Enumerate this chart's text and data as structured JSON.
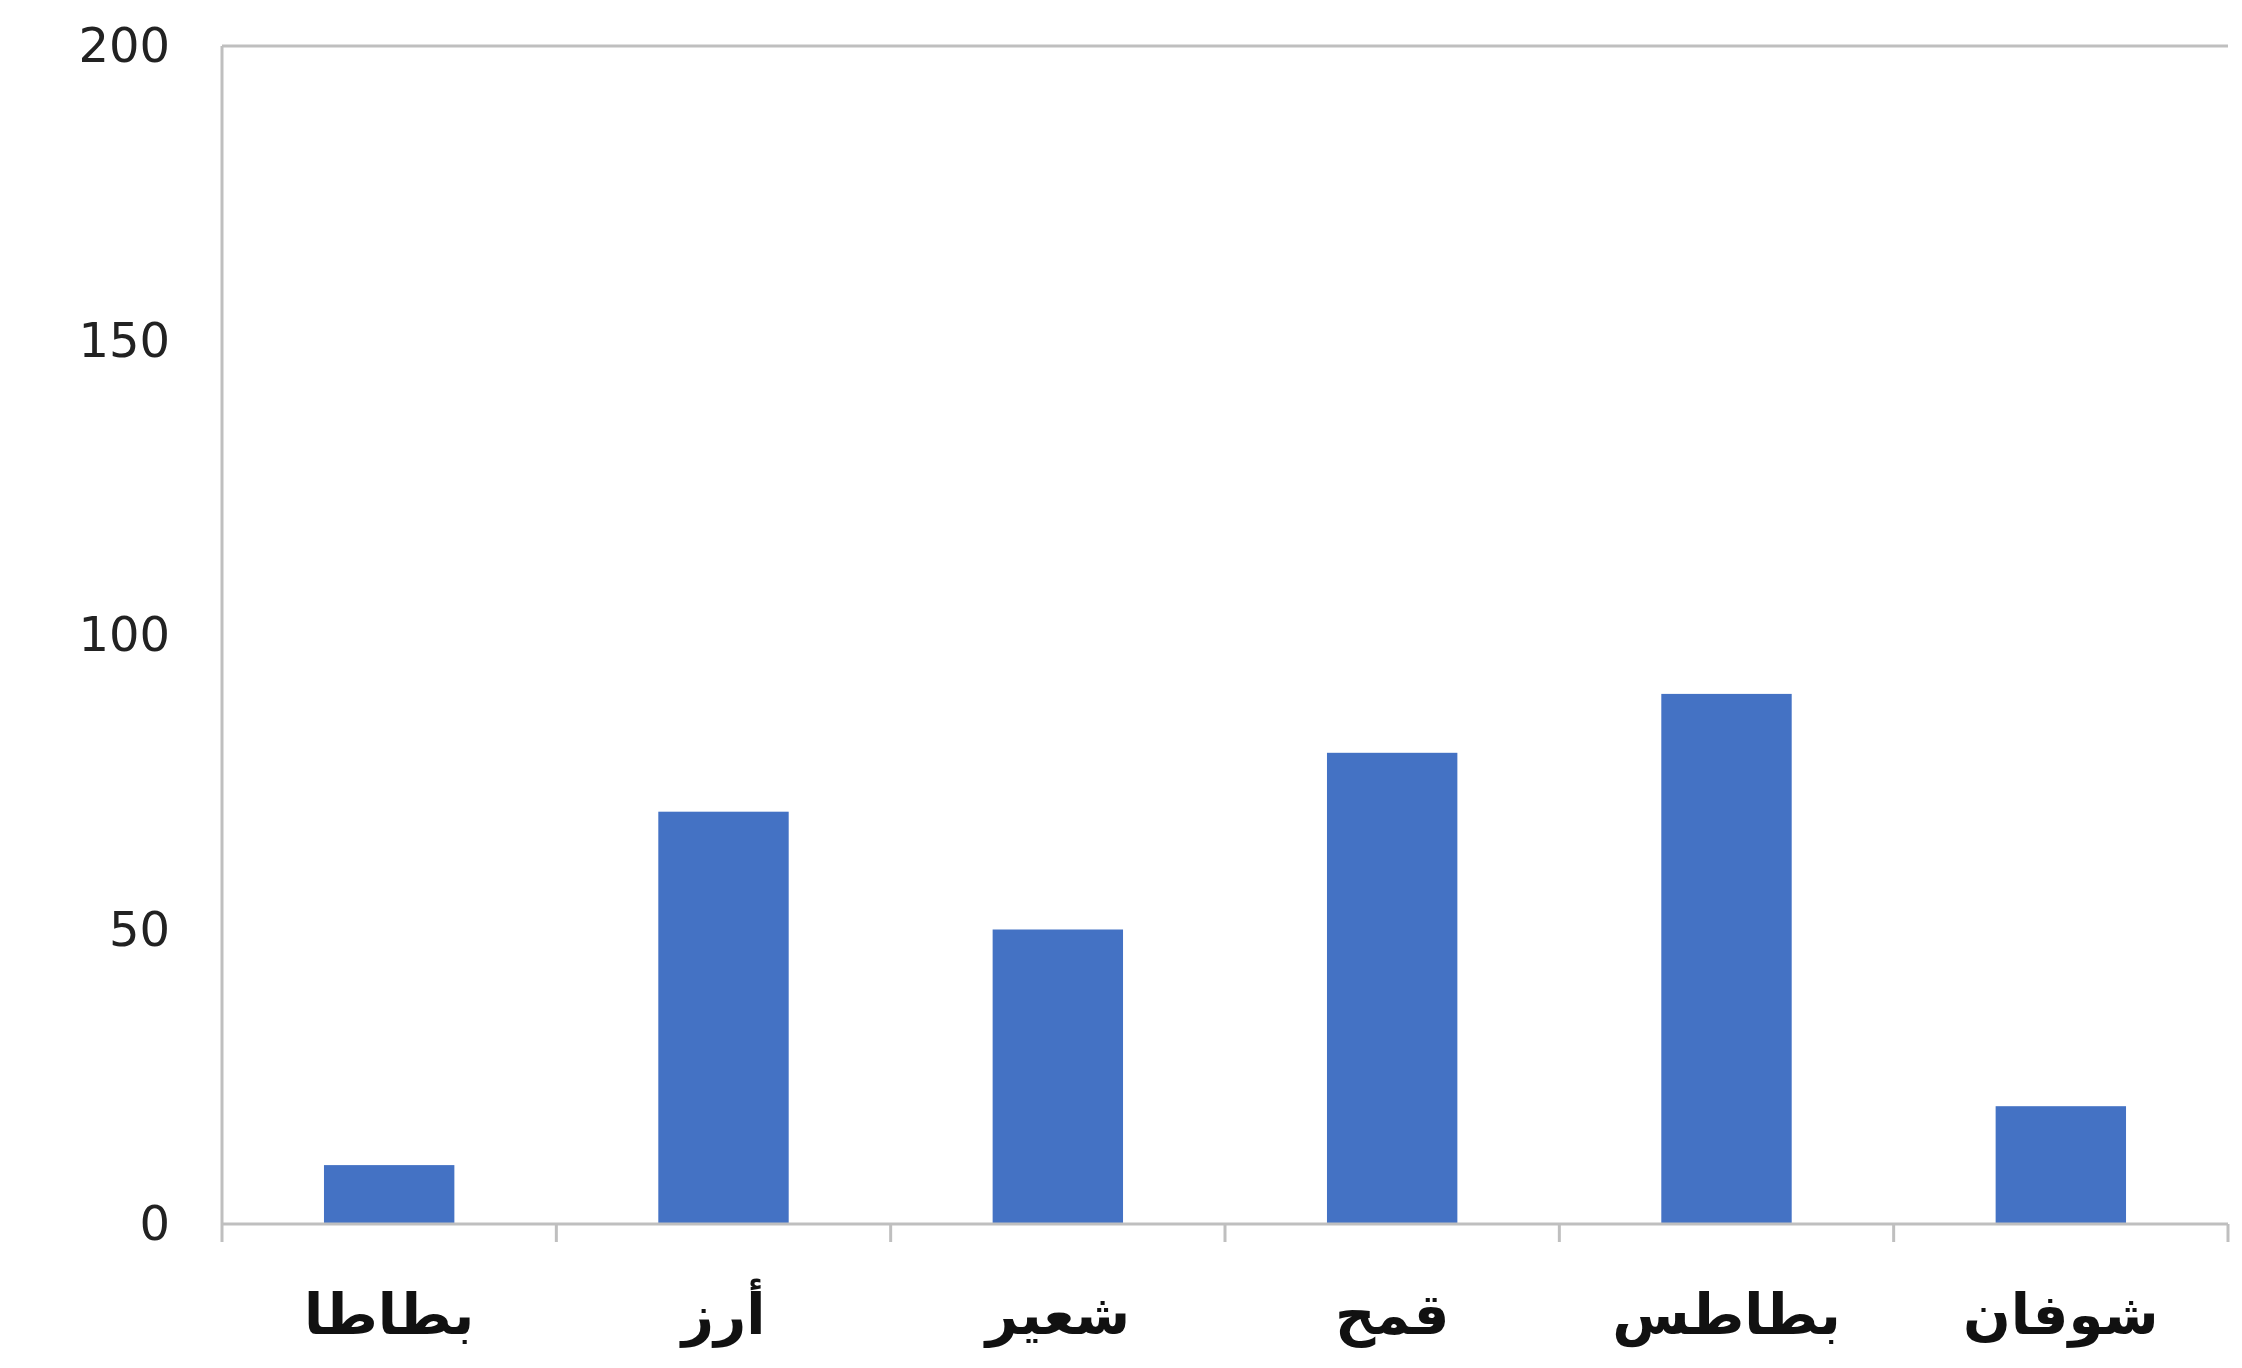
{
  "chart_data": {
    "type": "bar",
    "categories": [
      "بطاطا",
      "أرز",
      "شعير",
      "قمح",
      "بطاطس",
      "شوفان"
    ],
    "values": [
      10,
      70,
      50,
      80,
      90,
      20
    ],
    "color": "#4472c4",
    "ylim": [
      0,
      200
    ],
    "yticks": [
      0,
      50,
      100,
      150,
      200
    ],
    "grid": false
  }
}
